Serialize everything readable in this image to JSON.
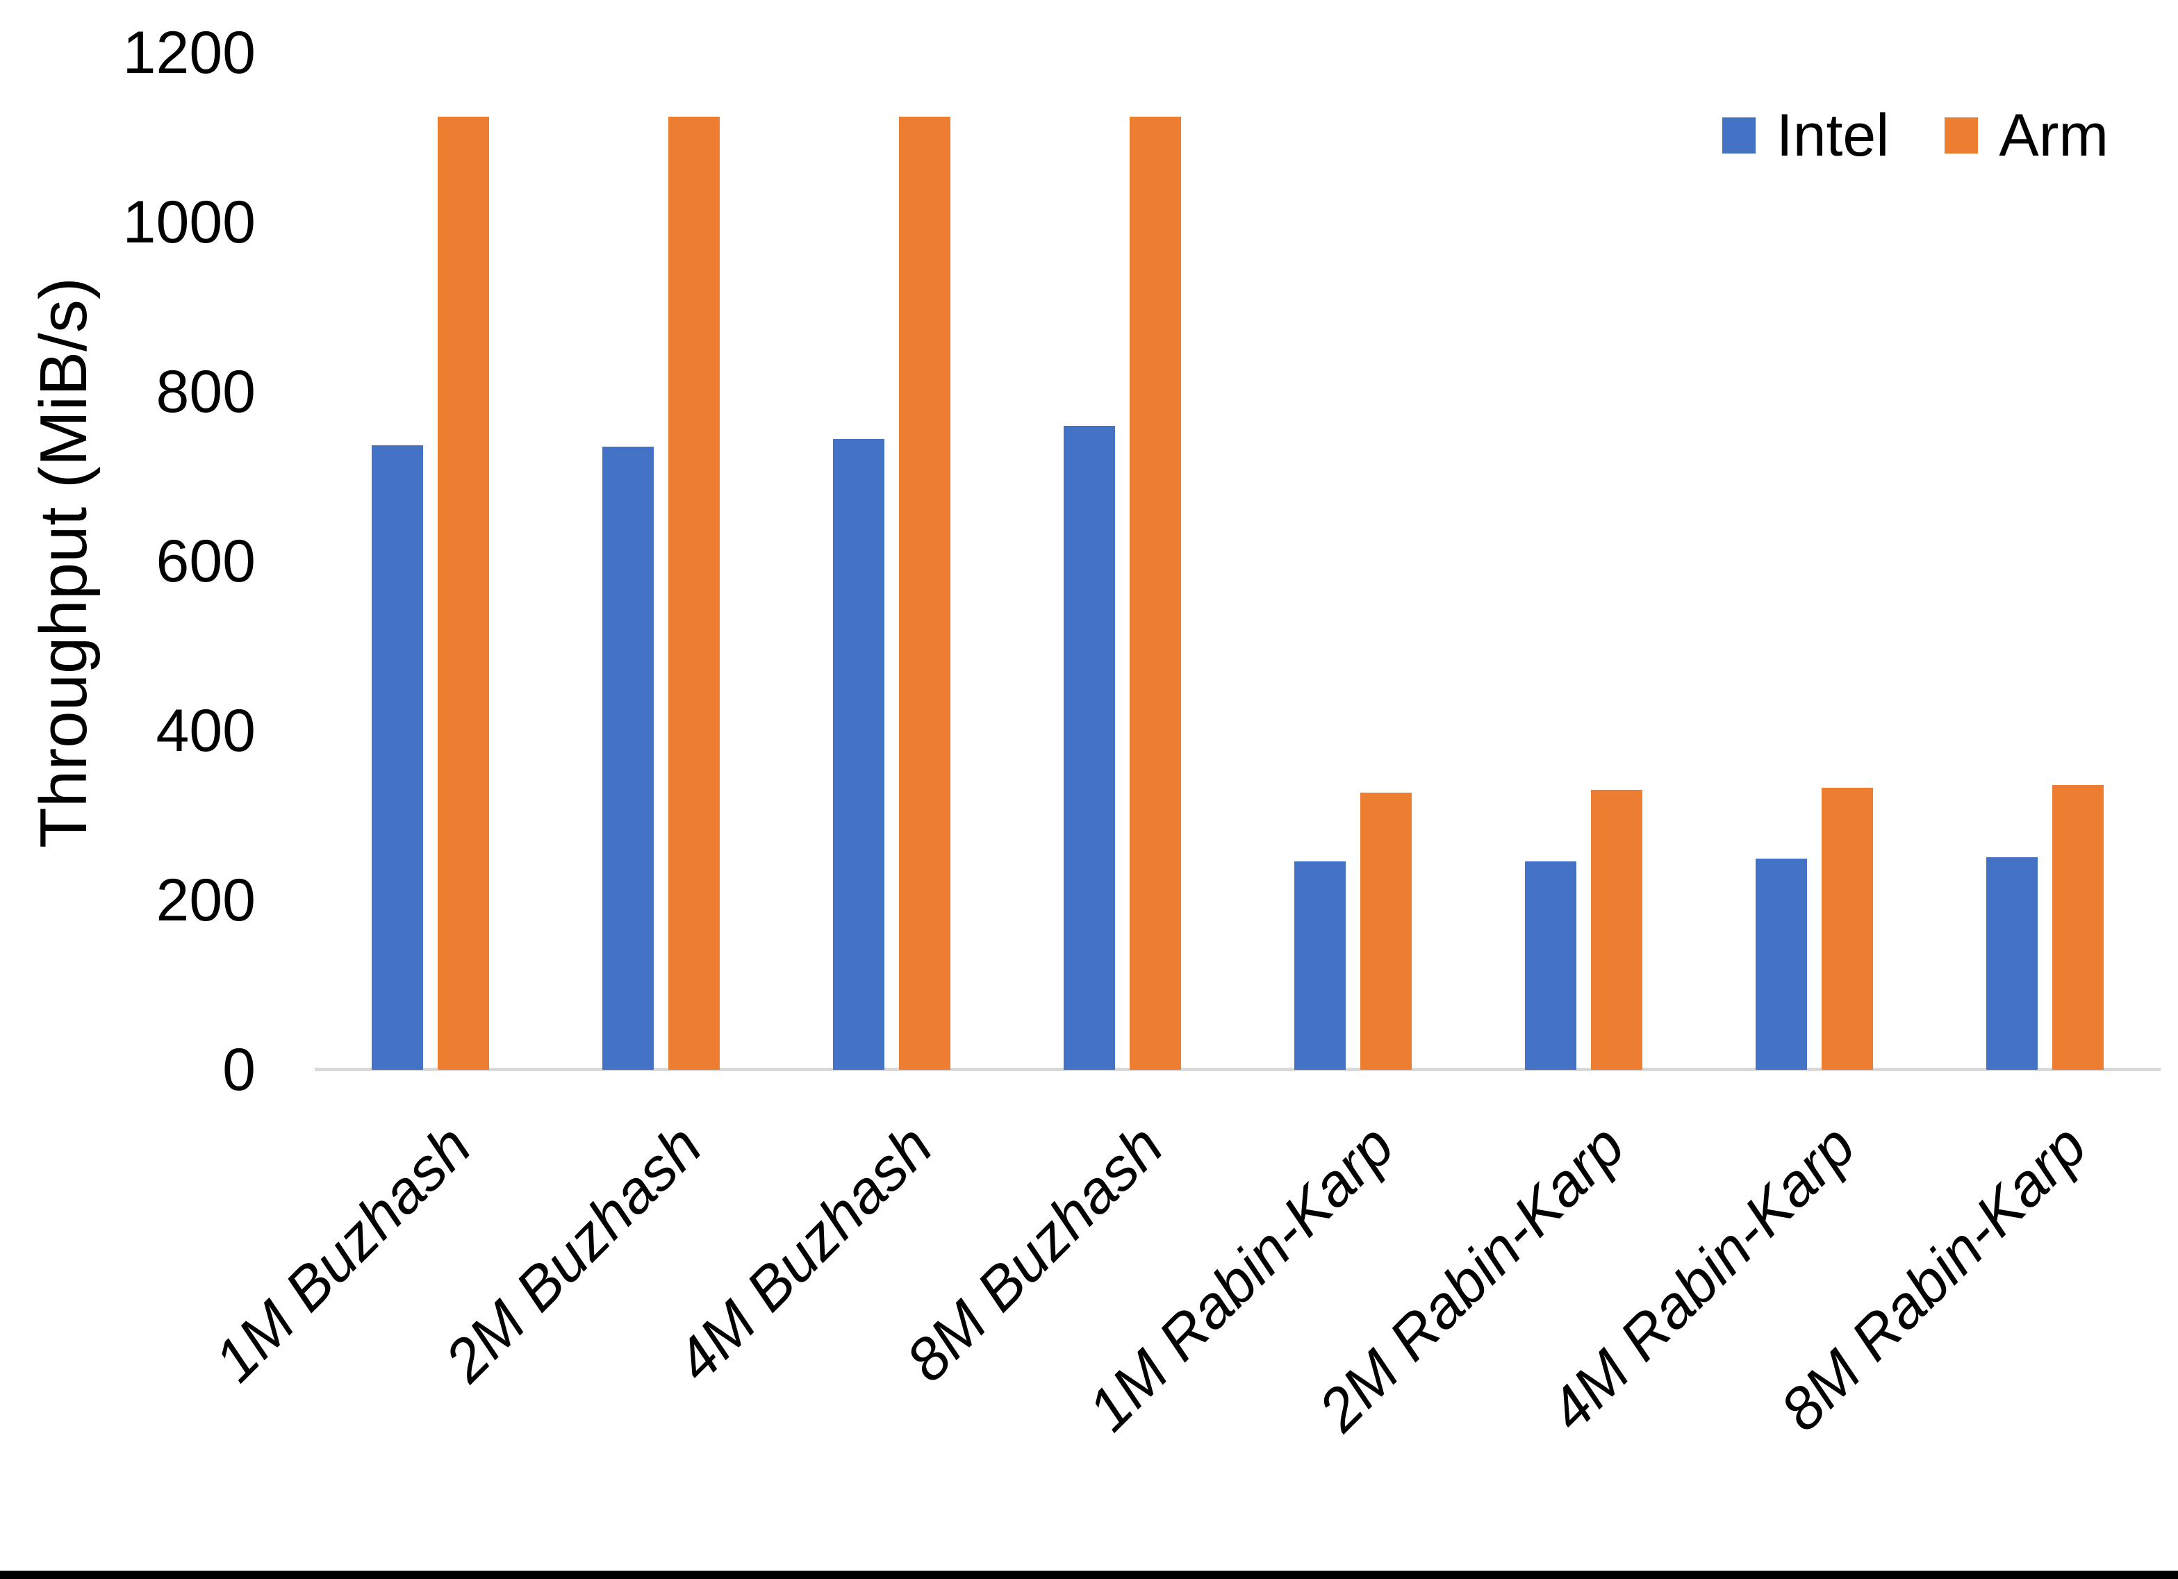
{
  "chart_data": {
    "type": "bar",
    "title": "",
    "xlabel": "",
    "ylabel": "Throughput (MiB/s)",
    "categories": [
      "1M Buzhash",
      "2M Buzhash",
      "4M Buzhash",
      "8M Buzhash",
      "1M Rabin-Karp",
      "2M Rabin-Karp",
      "4M Rabin-Karp",
      "8M Rabin-Karp"
    ],
    "series": [
      {
        "name": "Intel",
        "color": "#4472C4",
        "values": [
          737,
          735,
          744,
          760,
          246,
          246,
          249,
          251
        ]
      },
      {
        "name": "Arm",
        "color": "#ED7D31",
        "values": [
          1125,
          1125,
          1125,
          1125,
          327,
          330,
          333,
          336
        ]
      }
    ],
    "ylim": [
      0,
      1200
    ],
    "yticks": [
      "0",
      "200",
      "400",
      "600",
      "800",
      "1000",
      "1200"
    ],
    "grid": false,
    "legend_position": "top-right",
    "axis_line_color": "#D9D9D9",
    "x_label_style": "italic, rotated 45deg"
  },
  "colors": {
    "intel_bar": "#4472C4",
    "arm_bar": "#ED7D31",
    "axis_line": "#D9D9D9",
    "text": "#000000",
    "background": "#FFFFFF",
    "bottom_border": "#000000"
  }
}
